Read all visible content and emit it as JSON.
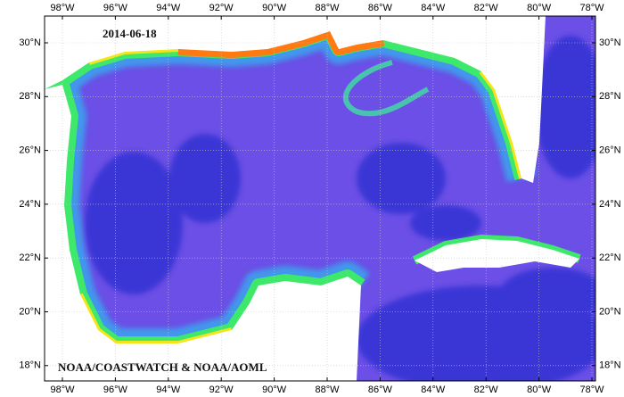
{
  "map": {
    "date": "2014-06-18",
    "credit": "NOAA/COASTWATCH & NOAA/AOML",
    "longitude_labels": [
      "98°W",
      "96°W",
      "94°W",
      "92°W",
      "90°W",
      "88°W",
      "86°W",
      "84°W",
      "82°W",
      "80°W",
      "78°W"
    ],
    "latitude_labels": [
      "30°N",
      "28°N",
      "26°N",
      "24°N",
      "22°N",
      "20°N",
      "18°N"
    ]
  }
}
